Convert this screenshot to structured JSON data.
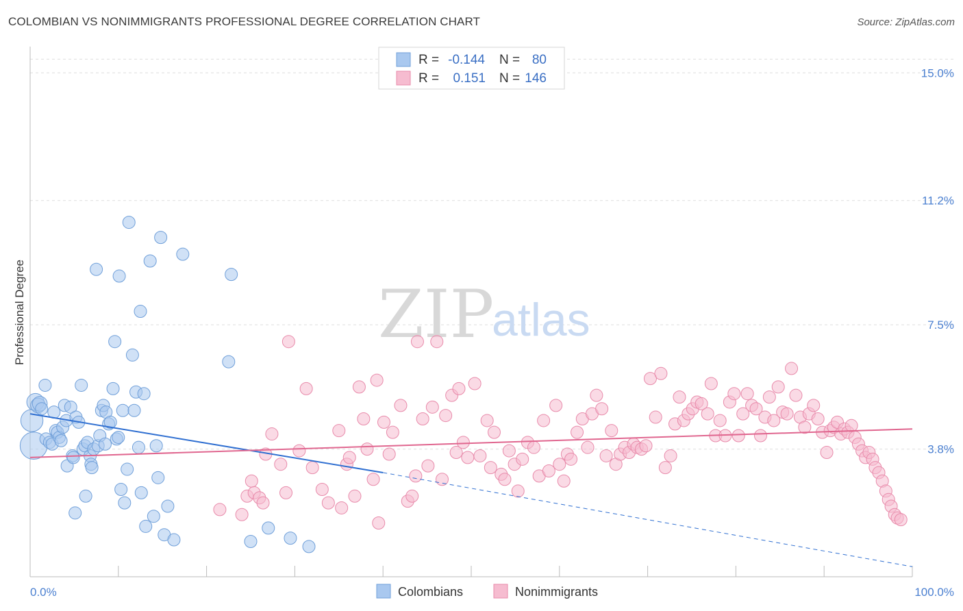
{
  "title": "COLOMBIAN VS NONIMMIGRANTS PROFESSIONAL DEGREE CORRELATION CHART",
  "source": "Source: ZipAtlas.com",
  "watermark": {
    "zip": "ZIP",
    "atlas": "atlas"
  },
  "legend_top": {
    "rows": [
      {
        "r_label": "R =",
        "r_value": "-0.144",
        "n_label": "N =",
        "n_value": "80"
      },
      {
        "r_label": "R =",
        "r_value": "0.151",
        "n_label": "N =",
        "n_value": "146"
      }
    ]
  },
  "colors": {
    "colombians_fill": "#a9c8ef",
    "colombians_stroke": "#6f9fd9",
    "colombians_line": "#2f6fd1",
    "nonimmigrants_fill": "#f6bcd0",
    "nonimmigrants_stroke": "#e88aaa",
    "nonimmigrants_line": "#e0668f",
    "tick": "#4a7fd0",
    "grid": "#dddddd"
  },
  "chart_data": {
    "type": "scatter",
    "title": "COLOMBIAN VS NONIMMIGRANTS PROFESSIONAL DEGREE CORRELATION CHART",
    "xlabel": "",
    "ylabel": "Professional Degree",
    "x_tick_labels": [
      "0.0%",
      "100.0%"
    ],
    "y_tick_labels": [
      "3.8%",
      "7.5%",
      "11.2%",
      "15.0%"
    ],
    "y_ticks": [
      3.8,
      7.5,
      11.2,
      15.0
    ],
    "xlim": [
      0,
      100
    ],
    "ylim": [
      0,
      15.7
    ],
    "grid": true,
    "legend": [
      "Colombians",
      "Nonimmigrants"
    ],
    "series": [
      {
        "name": "Colombians",
        "r": -0.144,
        "n": 80,
        "trend": {
          "x": [
            0,
            40
          ],
          "y": [
            4.85,
            3.1
          ],
          "dashed_to": [
            100,
            0.3
          ]
        },
        "points": [
          [
            0.2,
            4.65,
            18
          ],
          [
            0.4,
            3.9,
            22
          ],
          [
            0.6,
            5.2,
            14
          ],
          [
            0.9,
            5.1,
            12
          ],
          [
            1.1,
            5.15,
            12
          ],
          [
            1.3,
            5.0,
            10
          ],
          [
            1.7,
            5.7,
            10
          ],
          [
            1.8,
            4.1,
            10
          ],
          [
            2.2,
            4.0,
            10
          ],
          [
            2.5,
            3.95,
            10
          ],
          [
            2.7,
            4.9,
            10
          ],
          [
            2.9,
            4.35,
            10
          ],
          [
            3.1,
            4.3,
            10
          ],
          [
            3.3,
            4.15,
            10
          ],
          [
            3.5,
            4.05,
            10
          ],
          [
            3.7,
            4.45,
            10
          ],
          [
            3.9,
            5.1,
            10
          ],
          [
            4.1,
            4.65,
            10
          ],
          [
            4.2,
            3.3,
            10
          ],
          [
            4.6,
            5.05,
            10
          ],
          [
            4.8,
            3.6,
            10
          ],
          [
            4.9,
            3.55,
            10
          ],
          [
            5.2,
            4.75,
            10
          ],
          [
            5.5,
            4.6,
            10
          ],
          [
            5.1,
            1.9,
            10
          ],
          [
            5.8,
            5.7,
            10
          ],
          [
            6.0,
            3.8,
            10
          ],
          [
            6.2,
            3.9,
            10
          ],
          [
            6.3,
            2.4,
            10
          ],
          [
            6.5,
            4.0,
            10
          ],
          [
            6.8,
            3.6,
            10
          ],
          [
            6.9,
            3.35,
            10
          ],
          [
            7.0,
            3.25,
            10
          ],
          [
            7.2,
            3.8,
            10
          ],
          [
            7.5,
            9.15,
            10
          ],
          [
            7.7,
            3.9,
            10
          ],
          [
            7.9,
            4.2,
            10
          ],
          [
            8.1,
            4.95,
            10
          ],
          [
            8.3,
            5.1,
            10
          ],
          [
            8.5,
            3.95,
            10
          ],
          [
            8.6,
            4.9,
            10
          ],
          [
            8.9,
            4.55,
            10
          ],
          [
            9.1,
            4.6,
            10
          ],
          [
            9.4,
            5.6,
            10
          ],
          [
            9.6,
            7.0,
            10
          ],
          [
            9.8,
            4.1,
            10
          ],
          [
            10.0,
            4.15,
            10
          ],
          [
            10.1,
            8.95,
            10
          ],
          [
            10.5,
            4.95,
            10
          ],
          [
            10.3,
            2.6,
            10
          ],
          [
            10.7,
            2.2,
            10
          ],
          [
            11.0,
            3.2,
            10
          ],
          [
            11.2,
            10.55,
            10
          ],
          [
            11.6,
            6.6,
            10
          ],
          [
            11.8,
            4.95,
            10
          ],
          [
            12.0,
            5.5,
            10
          ],
          [
            12.3,
            3.85,
            10
          ],
          [
            12.5,
            7.9,
            10
          ],
          [
            12.6,
            2.5,
            10
          ],
          [
            12.9,
            5.45,
            10
          ],
          [
            13.1,
            1.5,
            10
          ],
          [
            13.6,
            9.4,
            10
          ],
          [
            14.0,
            1.8,
            10
          ],
          [
            14.3,
            3.9,
            10
          ],
          [
            14.5,
            2.95,
            10
          ],
          [
            14.8,
            10.1,
            10
          ],
          [
            15.2,
            1.25,
            10
          ],
          [
            15.6,
            2.1,
            10
          ],
          [
            16.3,
            1.1,
            10
          ],
          [
            17.3,
            9.6,
            10
          ],
          [
            22.5,
            6.4,
            10
          ],
          [
            22.8,
            9.0,
            10
          ],
          [
            25.0,
            1.05,
            10
          ],
          [
            27.0,
            1.45,
            10
          ],
          [
            29.5,
            1.15,
            10
          ],
          [
            31.6,
            0.9,
            10
          ]
        ]
      },
      {
        "name": "Nonimmigrants",
        "r": 0.151,
        "n": 146,
        "trend": {
          "x": [
            0,
            100
          ],
          "y": [
            3.55,
            4.4
          ]
        },
        "points": [
          [
            21.5,
            2.0,
            10
          ],
          [
            24.0,
            1.85,
            10
          ],
          [
            24.6,
            2.4,
            10
          ],
          [
            25.1,
            2.85,
            10
          ],
          [
            25.4,
            2.5,
            10
          ],
          [
            26.0,
            2.35,
            10
          ],
          [
            26.4,
            2.2,
            10
          ],
          [
            26.7,
            3.65,
            10
          ],
          [
            27.4,
            4.25,
            10
          ],
          [
            28.4,
            3.35,
            10
          ],
          [
            29.0,
            2.5,
            10
          ],
          [
            29.3,
            7.0,
            10
          ],
          [
            30.5,
            3.75,
            10
          ],
          [
            31.3,
            5.6,
            10
          ],
          [
            32.0,
            3.25,
            10
          ],
          [
            33.1,
            2.6,
            10
          ],
          [
            33.8,
            2.2,
            10
          ],
          [
            35.0,
            4.35,
            10
          ],
          [
            35.3,
            2.05,
            10
          ],
          [
            35.9,
            3.35,
            10
          ],
          [
            36.2,
            3.55,
            10
          ],
          [
            36.8,
            2.4,
            10
          ],
          [
            37.3,
            5.65,
            10
          ],
          [
            37.8,
            4.7,
            10
          ],
          [
            38.2,
            3.8,
            10
          ],
          [
            38.9,
            2.9,
            10
          ],
          [
            39.3,
            5.85,
            10
          ],
          [
            39.5,
            1.6,
            10
          ],
          [
            40.1,
            4.6,
            10
          ],
          [
            40.7,
            3.65,
            10
          ],
          [
            41.1,
            4.3,
            10
          ],
          [
            42.0,
            5.1,
            10
          ],
          [
            42.8,
            2.25,
            10
          ],
          [
            43.3,
            2.4,
            10
          ],
          [
            43.7,
            3.0,
            10
          ],
          [
            43.9,
            7.0,
            10
          ],
          [
            44.5,
            4.7,
            10
          ],
          [
            45.1,
            3.3,
            10
          ],
          [
            45.6,
            5.05,
            10
          ],
          [
            46.1,
            7.0,
            10
          ],
          [
            46.7,
            2.9,
            10
          ],
          [
            47.1,
            4.8,
            10
          ],
          [
            47.8,
            5.4,
            10
          ],
          [
            48.3,
            3.7,
            10
          ],
          [
            48.6,
            5.6,
            10
          ],
          [
            49.1,
            4.0,
            10
          ],
          [
            49.6,
            3.55,
            10
          ],
          [
            50.4,
            5.75,
            10
          ],
          [
            51.0,
            3.6,
            10
          ],
          [
            51.8,
            4.65,
            10
          ],
          [
            52.2,
            3.25,
            10
          ],
          [
            52.6,
            4.3,
            10
          ],
          [
            53.4,
            3.05,
            10
          ],
          [
            53.8,
            2.9,
            10
          ],
          [
            54.3,
            3.75,
            10
          ],
          [
            54.9,
            3.35,
            10
          ],
          [
            55.3,
            2.55,
            10
          ],
          [
            55.8,
            3.5,
            10
          ],
          [
            56.4,
            4.0,
            10
          ],
          [
            57.1,
            3.85,
            10
          ],
          [
            57.7,
            3.0,
            10
          ],
          [
            58.2,
            4.65,
            10
          ],
          [
            58.8,
            3.15,
            10
          ],
          [
            59.6,
            5.1,
            10
          ],
          [
            60.0,
            3.35,
            10
          ],
          [
            60.5,
            2.85,
            10
          ],
          [
            60.9,
            3.65,
            10
          ],
          [
            61.3,
            3.5,
            10
          ],
          [
            62.0,
            4.3,
            10
          ],
          [
            62.6,
            4.7,
            10
          ],
          [
            63.2,
            3.85,
            10
          ],
          [
            63.7,
            4.85,
            10
          ],
          [
            64.2,
            5.4,
            10
          ],
          [
            64.8,
            5.0,
            10
          ],
          [
            65.3,
            3.6,
            10
          ],
          [
            65.9,
            4.35,
            10
          ],
          [
            66.4,
            3.35,
            10
          ],
          [
            66.9,
            3.65,
            10
          ],
          [
            67.4,
            3.85,
            10
          ],
          [
            67.9,
            3.7,
            10
          ],
          [
            68.4,
            3.95,
            10
          ],
          [
            68.8,
            3.85,
            10
          ],
          [
            69.3,
            3.8,
            10
          ],
          [
            69.8,
            3.9,
            10
          ],
          [
            70.3,
            5.9,
            10
          ],
          [
            70.9,
            4.75,
            10
          ],
          [
            71.5,
            6.05,
            10
          ],
          [
            72.0,
            3.25,
            10
          ],
          [
            72.6,
            3.6,
            10
          ],
          [
            73.1,
            4.55,
            10
          ],
          [
            73.6,
            5.35,
            10
          ],
          [
            74.1,
            4.65,
            10
          ],
          [
            74.6,
            4.85,
            10
          ],
          [
            75.1,
            5.0,
            10
          ],
          [
            75.6,
            5.2,
            10
          ],
          [
            76.1,
            5.15,
            10
          ],
          [
            76.8,
            4.85,
            10
          ],
          [
            77.2,
            5.75,
            10
          ],
          [
            77.7,
            4.2,
            10
          ],
          [
            78.2,
            4.65,
            10
          ],
          [
            78.8,
            4.2,
            10
          ],
          [
            79.3,
            5.2,
            10
          ],
          [
            79.8,
            5.45,
            10
          ],
          [
            80.3,
            4.2,
            10
          ],
          [
            80.8,
            4.85,
            10
          ],
          [
            81.3,
            5.45,
            10
          ],
          [
            81.8,
            5.1,
            10
          ],
          [
            82.3,
            5.0,
            10
          ],
          [
            82.8,
            4.2,
            10
          ],
          [
            83.3,
            4.75,
            10
          ],
          [
            83.8,
            5.35,
            10
          ],
          [
            84.3,
            4.65,
            10
          ],
          [
            84.8,
            5.65,
            10
          ],
          [
            85.3,
            4.9,
            10
          ],
          [
            85.8,
            4.85,
            10
          ],
          [
            86.3,
            6.2,
            10
          ],
          [
            86.8,
            5.4,
            10
          ],
          [
            87.3,
            4.75,
            10
          ],
          [
            87.8,
            4.45,
            10
          ],
          [
            88.3,
            4.85,
            10
          ],
          [
            88.8,
            5.1,
            10
          ],
          [
            89.3,
            4.7,
            10
          ],
          [
            89.8,
            4.3,
            10
          ],
          [
            90.3,
            3.7,
            10
          ],
          [
            90.7,
            4.35,
            10
          ],
          [
            91.1,
            4.45,
            10
          ],
          [
            91.5,
            4.6,
            10
          ],
          [
            91.9,
            4.25,
            10
          ],
          [
            92.3,
            4.4,
            10
          ],
          [
            92.7,
            4.3,
            10
          ],
          [
            93.1,
            4.5,
            10
          ],
          [
            93.5,
            4.15,
            10
          ],
          [
            93.9,
            3.95,
            10
          ],
          [
            94.3,
            3.75,
            10
          ],
          [
            94.7,
            3.55,
            10
          ],
          [
            95.1,
            3.7,
            10
          ],
          [
            95.5,
            3.5,
            10
          ],
          [
            95.8,
            3.25,
            10
          ],
          [
            96.2,
            3.1,
            10
          ],
          [
            96.6,
            2.85,
            10
          ],
          [
            97.0,
            2.55,
            10
          ],
          [
            97.3,
            2.3,
            10
          ],
          [
            97.6,
            2.1,
            10
          ],
          [
            98.0,
            1.85,
            10
          ],
          [
            98.3,
            1.75,
            10
          ],
          [
            98.7,
            1.7,
            10
          ]
        ]
      }
    ]
  },
  "bottom_legend": [
    {
      "label": "Colombians"
    },
    {
      "label": "Nonimmigrants"
    }
  ]
}
